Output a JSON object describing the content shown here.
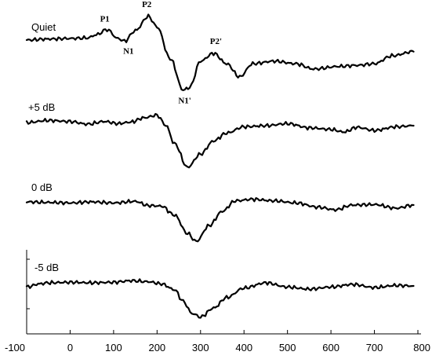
{
  "chart_data": {
    "type": "line",
    "title": "",
    "xlabel": "",
    "ylabel": "",
    "xlim": [
      -100,
      800
    ],
    "x_ticks": [
      "-100",
      "0",
      "100",
      "200",
      "300",
      "400",
      "500",
      "600",
      "700",
      "800"
    ],
    "grid": false,
    "legend": "none",
    "line_color": "#000000",
    "series": [
      {
        "name": "Quiet",
        "x": [
          -100,
          -50,
          0,
          40,
          60,
          85,
          110,
          125,
          150,
          180,
          200,
          230,
          260,
          275,
          300,
          330,
          360,
          390,
          420,
          470,
          520,
          560,
          620,
          660,
          700,
          740,
          790
        ],
        "y": [
          0.0,
          0.2,
          0.3,
          0.4,
          1.0,
          2.0,
          0.3,
          -0.2,
          1.8,
          4.5,
          2.5,
          -3.5,
          -9.5,
          -9.0,
          -4.0,
          -2.5,
          -4.5,
          -7.0,
          -4.5,
          -4.0,
          -4.5,
          -5.5,
          -5.0,
          -4.8,
          -4.5,
          -3.0,
          -2.2
        ]
      },
      {
        "name": "+5 dB",
        "x": [
          -100,
          -50,
          0,
          40,
          80,
          110,
          140,
          170,
          200,
          220,
          240,
          270,
          300,
          330,
          360,
          400,
          450,
          500,
          550,
          600,
          630,
          660,
          700,
          750,
          790
        ],
        "y": [
          0.0,
          0.4,
          0.2,
          -0.3,
          0.2,
          -0.2,
          0.1,
          0.9,
          1.4,
          -0.5,
          -4.0,
          -8.5,
          -6.0,
          -3.5,
          -2.0,
          -0.8,
          -0.6,
          -0.2,
          -1.0,
          -1.3,
          -1.8,
          -0.9,
          -1.5,
          -0.8,
          -0.6
        ]
      },
      {
        "name": "0 dB",
        "x": [
          -100,
          -50,
          0,
          50,
          100,
          150,
          180,
          210,
          240,
          270,
          290,
          320,
          350,
          380,
          420,
          470,
          520,
          570,
          610,
          650,
          700,
          750,
          790
        ],
        "y": [
          0.0,
          -0.1,
          -0.2,
          0.0,
          -0.2,
          0.1,
          -0.7,
          -0.8,
          -2.5,
          -6.0,
          -7.5,
          -4.5,
          -1.8,
          0.2,
          0.5,
          0.2,
          -0.2,
          -1.0,
          -1.5,
          -0.6,
          -0.5,
          -1.2,
          -0.6
        ]
      },
      {
        "name": "-5 dB",
        "x": [
          -100,
          -70,
          -50,
          0,
          50,
          100,
          140,
          180,
          210,
          240,
          260,
          280,
          300,
          330,
          360,
          400,
          450,
          500,
          550,
          600,
          650,
          700,
          750,
          790
        ],
        "y": [
          -0.8,
          -0.2,
          0.0,
          0.1,
          0.0,
          0.1,
          0.4,
          0.2,
          -0.2,
          -1.3,
          -3.5,
          -5.8,
          -6.5,
          -4.8,
          -2.8,
          -1.0,
          0.0,
          -0.8,
          -1.2,
          -0.8,
          -0.3,
          -0.9,
          -0.5,
          -0.6
        ]
      }
    ],
    "annotations": [
      {
        "text": "P1",
        "x": 87,
        "y": 2.0,
        "series": "Quiet"
      },
      {
        "text": "N1",
        "x": 125,
        "y": -0.2,
        "series": "Quiet"
      },
      {
        "text": "P2",
        "x": 180,
        "y": 4.5,
        "series": "Quiet"
      },
      {
        "text": "N1'",
        "x": 260,
        "y": -9.5,
        "series": "Quiet"
      },
      {
        "text": "P2'",
        "x": 330,
        "y": -2.5,
        "series": "Quiet"
      }
    ]
  }
}
